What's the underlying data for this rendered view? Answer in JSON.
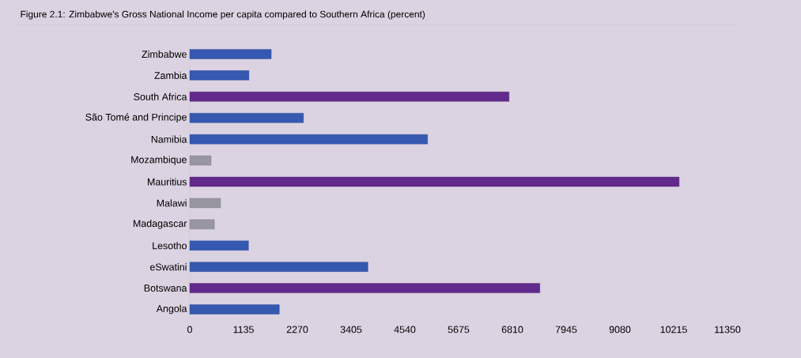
{
  "chart_data": {
    "type": "bar",
    "orientation": "horizontal",
    "title": "Figure 2.1: Zimbabwe's Gross National Income per capita compared to Southern Africa (percent)",
    "categories": [
      "Zimbabwe",
      "Zambia",
      "South Africa",
      "São Tomé and Principe",
      "Namibia",
      "Mozambique",
      "Mauritius",
      "Malawi",
      "Madagascar",
      "Lesotho",
      "eSwatini",
      "Botswana",
      "Angola"
    ],
    "values": [
      1720,
      1250,
      6740,
      2400,
      5020,
      450,
      10330,
      650,
      520,
      1240,
      3760,
      7390,
      1890
    ],
    "colors": [
      "#3558b0",
      "#3558b0",
      "#612a8c",
      "#3558b0",
      "#3558b0",
      "#9896a0",
      "#612a8c",
      "#9896a0",
      "#9896a0",
      "#3558b0",
      "#3558b0",
      "#612a8c",
      "#3558b0"
    ],
    "xlim": [
      0,
      11350
    ],
    "xticks": [
      0,
      1135,
      2270,
      3405,
      4540,
      5675,
      6810,
      7945,
      9080,
      10215,
      11350
    ]
  }
}
